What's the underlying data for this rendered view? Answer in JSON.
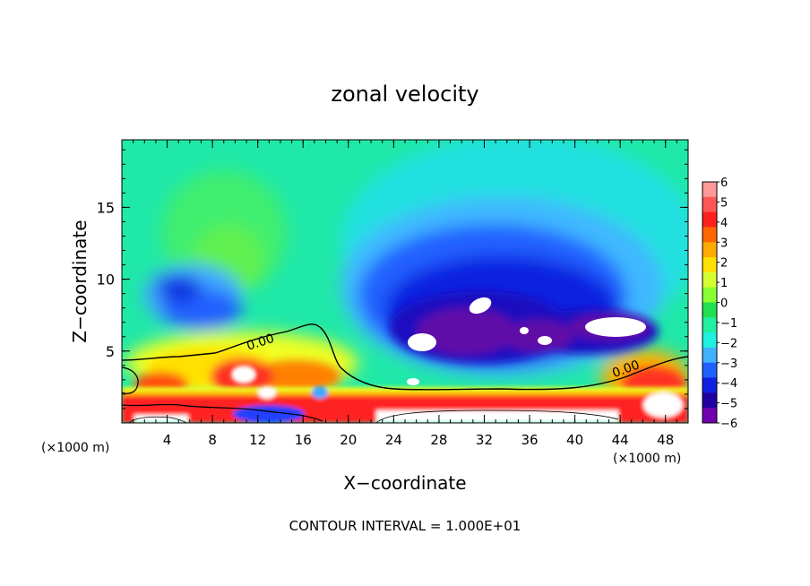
{
  "chart_data": {
    "type": "heatmap",
    "title": "zonal velocity",
    "xlabel": "X−coordinate",
    "ylabel": "Z−coordinate",
    "x_unit_left": "(×1000 m)",
    "x_unit_right": "(×1000 m)",
    "xlim": [
      0,
      50
    ],
    "ylim": [
      0,
      19.7
    ],
    "x_ticks": [
      4,
      8,
      12,
      16,
      20,
      24,
      28,
      32,
      36,
      40,
      44,
      48
    ],
    "y_ticks": [
      5,
      10,
      15
    ],
    "colorbar": {
      "levels": [
        6,
        5,
        4,
        3,
        2,
        1,
        0,
        -1,
        -2,
        -3,
        -4,
        -5,
        -6
      ],
      "labels": [
        "6",
        "5",
        "4",
        "3",
        "2",
        "1",
        "0",
        "−1",
        "−2",
        "−3",
        "−4",
        "−5",
        "−6"
      ],
      "colors": [
        "#ff9999",
        "#ff5555",
        "#ff2020",
        "#ff6600",
        "#ffaa00",
        "#ffe000",
        "#d4ff30",
        "#88ff30",
        "#20e050",
        "#20f0a0",
        "#20f0e0",
        "#40b0ff",
        "#2060ff",
        "#1020e0",
        "#2000a0",
        "#7000b0"
      ]
    },
    "contour_labels": [
      "0.00",
      "0.00"
    ],
    "features": [
      {
        "name": "eastward-jet-surface-band",
        "x_range": [
          0,
          50
        ],
        "z_range": [
          0,
          1.5
        ],
        "value": 5
      },
      {
        "name": "westward-core-upper",
        "x_center": 33,
        "z_center": 8,
        "value": -6
      },
      {
        "name": "westward-core-right",
        "x_center": 43,
        "z_center": 6.5,
        "value": -6
      },
      {
        "name": "westward-cell-left",
        "x_center": 8,
        "z_center": 8.5,
        "value": -4.5
      },
      {
        "name": "positive-cell-surface-left",
        "x_center": 11,
        "z_center": 3,
        "value": 5.5
      },
      {
        "name": "positive-cell-surface-right",
        "x_center": 46,
        "z_center": 2.5,
        "value": 4.5
      }
    ],
    "footer": "CONTOUR INTERVAL = 1.000E+01"
  }
}
